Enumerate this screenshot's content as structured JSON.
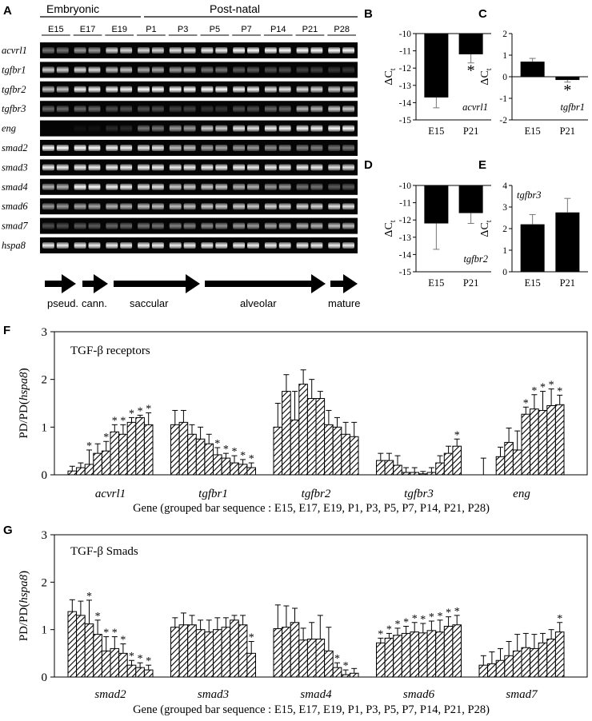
{
  "gel": {
    "panel_label": "A",
    "group_labels": [
      "Embryonic",
      "Post-natal"
    ],
    "timepoints": [
      "E15",
      "E17",
      "E19",
      "P1",
      "P3",
      "P5",
      "P7",
      "P14",
      "P21",
      "P28"
    ],
    "genes": [
      "acvrl1",
      "tgfbr1",
      "tgfbr2",
      "tgfbr3",
      "eng",
      "smad2",
      "smad3",
      "smad4",
      "smad6",
      "smad7",
      "hspa8"
    ],
    "band_intensity": [
      [
        0.45,
        0.6,
        0.85,
        0.85,
        0.9,
        0.95,
        1.0,
        1.0,
        1.0,
        1.0
      ],
      [
        0.8,
        0.85,
        0.75,
        0.65,
        0.6,
        0.45,
        0.35,
        0.3,
        0.25,
        0.2
      ],
      [
        0.75,
        0.95,
        0.95,
        1.0,
        1.0,
        1.0,
        0.95,
        0.9,
        0.85,
        0.8
      ],
      [
        0.4,
        0.4,
        0.3,
        0.3,
        0.25,
        0.2,
        0.3,
        0.4,
        0.7,
        0.8
      ],
      [
        0.0,
        0.05,
        0.15,
        0.45,
        0.6,
        0.8,
        0.9,
        0.95,
        0.95,
        1.0
      ],
      [
        1.0,
        1.0,
        0.95,
        0.9,
        0.75,
        0.65,
        0.6,
        0.55,
        0.5,
        0.45
      ],
      [
        0.95,
        0.95,
        0.95,
        0.95,
        0.95,
        0.95,
        0.95,
        0.95,
        0.95,
        0.9
      ],
      [
        0.7,
        1.0,
        0.95,
        0.9,
        0.8,
        0.8,
        0.7,
        0.6,
        0.45,
        0.35
      ],
      [
        0.6,
        0.65,
        0.7,
        0.75,
        0.75,
        0.8,
        0.8,
        0.85,
        0.85,
        0.9
      ],
      [
        0.3,
        0.35,
        0.4,
        0.45,
        0.5,
        0.55,
        0.6,
        0.65,
        0.7,
        0.75
      ],
      [
        0.95,
        0.95,
        0.95,
        0.95,
        0.95,
        0.95,
        0.95,
        0.95,
        0.95,
        0.95
      ]
    ],
    "stages": [
      "pseud.",
      "cann.",
      "saccular",
      "alveolar",
      "mature"
    ]
  },
  "chart_data": [
    {
      "panel": "B",
      "type": "bar",
      "gene_label": "acvrl1",
      "categories": [
        "E15",
        "P21"
      ],
      "values": [
        -13.7,
        -11.2
      ],
      "errors": [
        0.6,
        0.5
      ],
      "significant": [
        false,
        true
      ],
      "ylabel": "ΔCt",
      "ylim": [
        -15,
        -10
      ],
      "yticks": [
        -10,
        -11,
        -12,
        -13,
        -14,
        -15
      ],
      "baseline": -10,
      "label_pos": "bottom-right"
    },
    {
      "panel": "C",
      "type": "bar",
      "gene_label": "tgfbr1",
      "categories": [
        "E15",
        "P21"
      ],
      "values": [
        0.7,
        -0.15
      ],
      "errors": [
        0.15,
        0.1
      ],
      "significant": [
        false,
        true
      ],
      "ylabel": "ΔCt",
      "ylim": [
        -2,
        2
      ],
      "yticks": [
        2,
        1,
        0,
        -1,
        -2
      ],
      "baseline": 0,
      "label_pos": "bottom-right"
    },
    {
      "panel": "D",
      "type": "bar",
      "gene_label": "tgfbr2",
      "categories": [
        "E15",
        "P21"
      ],
      "values": [
        -12.2,
        -11.6
      ],
      "errors": [
        1.5,
        0.6
      ],
      "significant": [
        false,
        false
      ],
      "ylabel": "ΔCt",
      "ylim": [
        -15,
        -10
      ],
      "yticks": [
        -10,
        -11,
        -12,
        -13,
        -14,
        -15
      ],
      "baseline": -10,
      "label_pos": "bottom-right"
    },
    {
      "panel": "E",
      "type": "bar",
      "gene_label": "tgfbr3",
      "categories": [
        "E15",
        "P21"
      ],
      "values": [
        2.2,
        2.75
      ],
      "errors": [
        0.45,
        0.65
      ],
      "significant": [
        false,
        false
      ],
      "ylabel": "ΔCt",
      "ylim": [
        0,
        4
      ],
      "yticks": [
        4,
        3,
        2,
        1,
        0
      ],
      "baseline": 0,
      "label_pos": "top-left"
    },
    {
      "panel": "F",
      "type": "bar",
      "title": "TGF-β receptors",
      "ylabel": "PD/PD(hspa8)",
      "xlabel": "Gene (grouped bar sequence : E15, E17, E19, P1, P3, P5, P7, P14, P21, P28)",
      "ylim": [
        0,
        3
      ],
      "yticks": [
        0,
        1,
        2,
        3
      ],
      "categories": [
        "acvrl1",
        "tgfbr1",
        "tgfbr2",
        "tgfbr3",
        "eng"
      ],
      "series_labels": [
        "E15",
        "E17",
        "E19",
        "P1",
        "P3",
        "P5",
        "P7",
        "P14",
        "P21",
        "P28"
      ],
      "values": [
        [
          0.08,
          0.15,
          0.22,
          0.45,
          0.5,
          0.9,
          0.85,
          1.1,
          1.2,
          1.05
        ],
        [
          1.05,
          1.1,
          0.85,
          0.75,
          0.65,
          0.42,
          0.35,
          0.25,
          0.22,
          0.15
        ],
        [
          1.0,
          1.75,
          1.15,
          1.9,
          1.6,
          1.6,
          1.05,
          1.0,
          0.85,
          0.8
        ],
        [
          0.3,
          0.3,
          0.2,
          0.05,
          0.05,
          0.02,
          0.05,
          0.25,
          0.45,
          0.6
        ],
        [
          0.0,
          0.0,
          0.38,
          0.68,
          0.52,
          1.27,
          1.38,
          1.35,
          1.45,
          1.47
        ]
      ],
      "errors": [
        [
          0.1,
          0.1,
          0.3,
          0.2,
          0.2,
          0.15,
          0.2,
          0.1,
          0.05,
          0.25
        ],
        [
          0.3,
          0.25,
          0.2,
          0.25,
          0.2,
          0.15,
          0.1,
          0.15,
          0.1,
          0.1
        ],
        [
          0.5,
          0.35,
          0.6,
          0.3,
          0.4,
          0.15,
          0.3,
          0.2,
          0.25,
          0.3
        ],
        [
          0.15,
          0.15,
          0.2,
          0.1,
          0.1,
          0.05,
          0.1,
          0.15,
          0.15,
          0.15
        ],
        [
          0.35,
          0.0,
          0.2,
          0.3,
          0.4,
          0.15,
          0.3,
          0.4,
          0.35,
          0.2
        ]
      ],
      "significant": [
        [
          false,
          false,
          true,
          false,
          true,
          true,
          true,
          true,
          true,
          true
        ],
        [
          false,
          false,
          false,
          false,
          false,
          true,
          true,
          true,
          true,
          true
        ],
        [
          false,
          false,
          false,
          false,
          false,
          false,
          false,
          false,
          false,
          false
        ],
        [
          false,
          false,
          false,
          false,
          false,
          false,
          false,
          false,
          false,
          true
        ],
        [
          false,
          false,
          false,
          false,
          false,
          true,
          true,
          true,
          true,
          true
        ]
      ]
    },
    {
      "panel": "G",
      "type": "bar",
      "title": "TGF-β Smads",
      "ylabel": "PD/PD(hspa8)",
      "xlabel": "Gene (grouped bar sequence : E15, E17, E19, P1, P3, P5, P7, P14, P21, P28)",
      "ylim": [
        0,
        3
      ],
      "yticks": [
        0,
        1,
        2,
        3
      ],
      "categories": [
        "smad2",
        "smad3",
        "smad4",
        "smad6",
        "smad7"
      ],
      "series_labels": [
        "E15",
        "E17",
        "E19",
        "P1",
        "P3",
        "P5",
        "P7",
        "P14",
        "P21",
        "P28"
      ],
      "values": [
        [
          1.38,
          1.3,
          1.12,
          0.9,
          0.55,
          0.6,
          0.5,
          0.25,
          0.2,
          0.15
        ],
        [
          1.05,
          1.1,
          1.1,
          1.0,
          0.95,
          1.0,
          1.05,
          1.2,
          1.1,
          0.5
        ],
        [
          1.02,
          1.05,
          1.15,
          0.78,
          0.8,
          0.8,
          0.55,
          0.2,
          0.05,
          0.08
        ],
        [
          0.72,
          0.82,
          0.88,
          0.92,
          0.95,
          0.93,
          0.98,
          0.95,
          1.07,
          1.1
        ],
        [
          0.25,
          0.28,
          0.35,
          0.45,
          0.55,
          0.62,
          0.6,
          0.72,
          0.8,
          0.95
        ]
      ],
      "errors": [
        [
          0.25,
          0.3,
          0.5,
          0.3,
          0.3,
          0.25,
          0.2,
          0.1,
          0.1,
          0.1
        ],
        [
          0.2,
          0.25,
          0.2,
          0.2,
          0.25,
          0.25,
          0.2,
          0.1,
          0.2,
          0.25
        ],
        [
          0.5,
          0.45,
          0.3,
          0.25,
          0.35,
          0.5,
          0.5,
          0.1,
          0.1,
          0.1
        ],
        [
          0.1,
          0.1,
          0.15,
          0.15,
          0.2,
          0.2,
          0.2,
          0.25,
          0.2,
          0.2
        ],
        [
          0.2,
          0.25,
          0.25,
          0.3,
          0.35,
          0.3,
          0.3,
          0.2,
          0.2,
          0.2
        ]
      ],
      "significant": [
        [
          false,
          false,
          true,
          true,
          true,
          true,
          true,
          true,
          true,
          true
        ],
        [
          false,
          false,
          false,
          false,
          false,
          false,
          false,
          false,
          false,
          true
        ],
        [
          false,
          false,
          false,
          false,
          false,
          false,
          false,
          true,
          true,
          false
        ],
        [
          true,
          true,
          true,
          true,
          true,
          true,
          true,
          true,
          true,
          true
        ],
        [
          false,
          false,
          false,
          false,
          false,
          false,
          false,
          false,
          false,
          true
        ]
      ]
    }
  ]
}
